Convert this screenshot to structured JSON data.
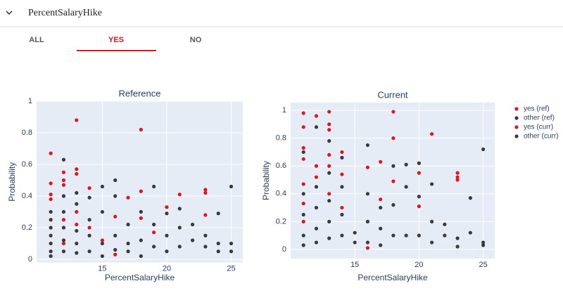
{
  "header": {
    "title": "PercentSalaryHike"
  },
  "tabs": [
    "ALL",
    "YES",
    "NO"
  ],
  "chart_data": [
    {
      "type": "scatter",
      "title": "Reference",
      "xlabel": "PercentSalaryHike",
      "ylabel": "Probability",
      "xlim": [
        9.9,
        25.9
      ],
      "xticks": [
        15,
        20,
        25
      ],
      "ylim": [
        -0.02,
        1
      ],
      "yticks": [
        0,
        0.2,
        0.4,
        0.6,
        0.8,
        1
      ],
      "grid": true,
      "series": [
        {
          "name": "yes (ref)",
          "color": "#e3141c",
          "x": [
            11,
            11,
            11,
            11,
            12,
            12,
            12,
            12,
            13,
            13,
            13,
            13,
            13,
            14,
            14,
            15,
            16,
            17,
            18,
            18,
            18,
            19,
            20,
            21,
            23,
            23,
            23,
            12,
            16
          ],
          "values": [
            0.67,
            0.48,
            0.41,
            0.38,
            0.55,
            0.5,
            0.47,
            0.25,
            0.88,
            0.57,
            0.54,
            0.3,
            0.22,
            0.45,
            0.2,
            0.12,
            0.27,
            0.39,
            0.82,
            0.43,
            0.26,
            0.17,
            0.33,
            0.41,
            0.44,
            0.42,
            0.28,
            0.1,
            0.03
          ]
        },
        {
          "name": "other (ref)",
          "color": "#3a3a3a",
          "x": [
            11,
            11,
            11,
            11,
            11,
            11,
            11,
            12,
            12,
            12,
            12,
            12,
            12,
            13,
            13,
            13,
            13,
            13,
            14,
            14,
            14,
            14,
            15,
            15,
            15,
            15,
            16,
            16,
            16,
            16,
            17,
            17,
            17,
            18,
            18,
            18,
            19,
            19,
            19,
            20,
            20,
            20,
            21,
            21,
            21,
            22,
            22,
            23,
            23,
            24,
            24,
            24,
            25,
            25,
            25
          ],
          "values": [
            0.25,
            0.2,
            0.15,
            0.1,
            0.05,
            0.02,
            0.3,
            0.63,
            0.4,
            0.3,
            0.2,
            0.12,
            0.05,
            0.42,
            0.35,
            0.18,
            0.1,
            0.04,
            0.39,
            0.25,
            0.15,
            0.05,
            0.46,
            0.3,
            0.1,
            0.02,
            0.5,
            0.4,
            0.15,
            0.06,
            0.22,
            0.1,
            0.05,
            0.3,
            0.12,
            0.02,
            0.46,
            0.22,
            0.08,
            0.29,
            0.15,
            0.05,
            0.32,
            0.2,
            0.08,
            0.22,
            0.12,
            0.15,
            0.08,
            0.29,
            0.1,
            0.05,
            0.46,
            0.1,
            0.05
          ]
        }
      ]
    },
    {
      "type": "scatter",
      "title": "Current",
      "xlabel": "PercentSalaryHike",
      "ylabel": "Probability",
      "xlim": [
        10,
        25.9
      ],
      "xticks": [
        15,
        20,
        25
      ],
      "ylim": [
        -0.066,
        1.056
      ],
      "yticks": [
        0,
        0.2,
        0.4,
        0.6,
        0.8,
        1
      ],
      "grid": true,
      "series": [
        {
          "name": "yes (curr)",
          "color": "#e3141c",
          "x": [
            11,
            11,
            11,
            11,
            11,
            11,
            11,
            12,
            12,
            12,
            13,
            13,
            13,
            13,
            13,
            13,
            14,
            14,
            14,
            16,
            16,
            17,
            17,
            18,
            18,
            18,
            20,
            20,
            21,
            23,
            23,
            23
          ],
          "values": [
            0.98,
            0.88,
            0.73,
            0.65,
            0.47,
            0.33,
            0.2,
            0.96,
            0.6,
            0.52,
            0.99,
            0.9,
            0.86,
            0.68,
            0.6,
            0.4,
            0.7,
            0.54,
            0.3,
            0.59,
            0.01,
            0.63,
            0.36,
            0.99,
            0.8,
            0.49,
            0.55,
            0.31,
            0.83,
            0.55,
            0.52,
            0.5
          ]
        },
        {
          "name": "other (curr)",
          "color": "#3a3a3a",
          "x": [
            11,
            11,
            11,
            11,
            11,
            12,
            12,
            12,
            12,
            12,
            13,
            13,
            13,
            13,
            13,
            14,
            14,
            14,
            14,
            15,
            15,
            16,
            16,
            16,
            16,
            17,
            17,
            17,
            18,
            18,
            18,
            19,
            19,
            19,
            20,
            20,
            20,
            21,
            21,
            21,
            22,
            22,
            23,
            23,
            24,
            24,
            25,
            25,
            25
          ],
          "values": [
            0.7,
            0.4,
            0.25,
            0.1,
            0.03,
            0.88,
            0.45,
            0.3,
            0.15,
            0.05,
            0.78,
            0.55,
            0.35,
            0.2,
            0.08,
            0.66,
            0.45,
            0.25,
            0.1,
            0.12,
            0.05,
            0.75,
            0.4,
            0.2,
            0.05,
            0.3,
            0.15,
            0.03,
            0.6,
            0.32,
            0.1,
            0.61,
            0.45,
            0.1,
            0.62,
            0.38,
            0.1,
            0.47,
            0.2,
            0.05,
            0.18,
            0.1,
            0.08,
            0.02,
            0.37,
            0.12,
            0.72,
            0.05,
            0.03
          ]
        }
      ]
    }
  ]
}
